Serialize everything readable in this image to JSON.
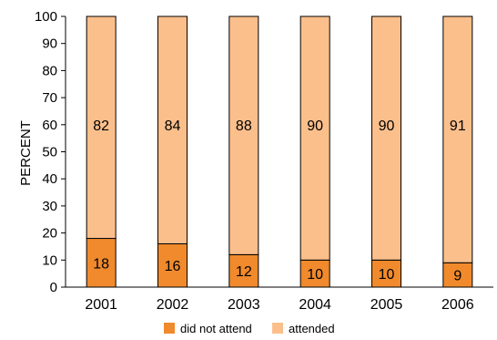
{
  "chart_data": {
    "type": "bar",
    "stacked": true,
    "normalized_percent": true,
    "categories": [
      "2001",
      "2002",
      "2003",
      "2004",
      "2005",
      "2006"
    ],
    "series": [
      {
        "name": "did not attend",
        "values": [
          18,
          16,
          12,
          10,
          10,
          9
        ],
        "color": "#f08a2c"
      },
      {
        "name": "attended",
        "values": [
          82,
          84,
          88,
          90,
          90,
          91
        ],
        "color": "#fbbf8c"
      }
    ],
    "title": "",
    "xlabel": "",
    "ylabel": "PERCENT",
    "ylim": [
      0,
      100
    ],
    "yticks": [
      0,
      10,
      20,
      30,
      40,
      50,
      60,
      70,
      80,
      90,
      100
    ],
    "grid": false,
    "legend_position": "bottom"
  }
}
